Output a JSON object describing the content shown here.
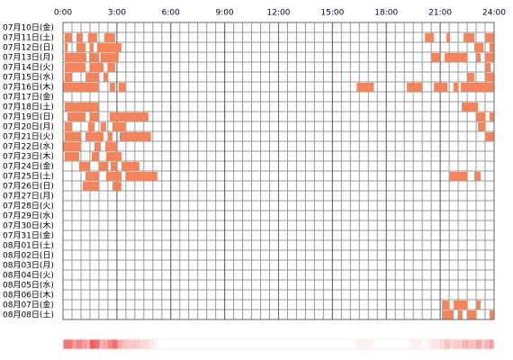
{
  "chart_data": {
    "type": "timeline",
    "color": "#f4845c",
    "grid": true,
    "xlim": [
      0,
      24
    ],
    "xticks": [
      {
        "value": 0,
        "label": "0:00"
      },
      {
        "value": 3,
        "label": "3:00"
      },
      {
        "value": 6,
        "label": "6:00"
      },
      {
        "value": 9,
        "label": "9:00"
      },
      {
        "value": 12,
        "label": "12:00"
      },
      {
        "value": 15,
        "label": "15:00"
      },
      {
        "value": 18,
        "label": "18:00"
      },
      {
        "value": 21,
        "label": "21:00"
      },
      {
        "value": 24,
        "label": "24:00"
      }
    ],
    "categories": [
      "07月10日(金)",
      "07月11日(土)",
      "07月12日(日)",
      "07月13日(月)",
      "07月14日(火)",
      "07月15日(水)",
      "07月16日(木)",
      "07月17日(金)",
      "07月18日(土)",
      "07月19日(日)",
      "07月20日(月)",
      "07月21日(火)",
      "07月22日(水)",
      "07月23日(木)",
      "07月24日(金)",
      "07月25日(土)",
      "07月26日(日)",
      "07月27日(月)",
      "07月28日(火)",
      "07月29日(水)",
      "07月30日(木)",
      "07月31日(金)",
      "08月01日(土)",
      "08月02日(日)",
      "08月03日(月)",
      "08月04日(火)",
      "08月05日(水)",
      "08月06日(木)",
      "08月07日(金)",
      "08月08日(土)"
    ],
    "values": [
      [],
      [
        [
          0.1,
          0.5
        ],
        [
          0.75,
          1.1
        ],
        [
          1.4,
          1.9
        ],
        [
          2.3,
          2.9
        ],
        [
          20.15,
          20.65
        ],
        [
          21.35,
          21.55
        ],
        [
          22.3,
          22.9
        ],
        [
          23.5,
          24
        ]
      ],
      [
        [
          0.1,
          0.25
        ],
        [
          0.75,
          1.25
        ],
        [
          1.5,
          1.7
        ],
        [
          1.9,
          3.25
        ],
        [
          22.9,
          23.4
        ],
        [
          23.75,
          24
        ]
      ],
      [
        [
          0.1,
          1.3
        ],
        [
          1.45,
          2
        ],
        [
          2.1,
          3.1
        ],
        [
          20.5,
          21
        ],
        [
          21.25,
          22.5
        ],
        [
          23,
          23.25
        ],
        [
          23.5,
          24
        ]
      ],
      [
        [
          0.1,
          1.25
        ],
        [
          1.5,
          2.25
        ],
        [
          2.5,
          2.9
        ],
        [
          23.5,
          23.8
        ]
      ],
      [
        [
          0.1,
          0.5
        ],
        [
          1.25,
          2
        ],
        [
          2.25,
          2.5
        ],
        [
          22.5,
          22.9
        ],
        [
          23.5,
          24
        ]
      ],
      [
        [
          0,
          2
        ],
        [
          2.6,
          2.9
        ],
        [
          3.1,
          3.5
        ],
        [
          16.35,
          17.3
        ],
        [
          19.15,
          20
        ],
        [
          20.65,
          21.4
        ],
        [
          21.75,
          22
        ],
        [
          22.15,
          24
        ]
      ],
      [],
      [
        [
          0.1,
          2
        ],
        [
          22.2,
          23.1
        ]
      ],
      [
        [
          0.25,
          1.25
        ],
        [
          1.5,
          2
        ],
        [
          2.6,
          4.75
        ],
        [
          23,
          23.5
        ],
        [
          23.75,
          24
        ]
      ],
      [
        [
          0.1,
          0.5
        ],
        [
          1.4,
          1.75
        ],
        [
          2.1,
          2.4
        ],
        [
          2.75,
          3.5
        ],
        [
          23.1,
          23.5
        ]
      ],
      [
        [
          0.1,
          1
        ],
        [
          1.25,
          2.25
        ],
        [
          2.5,
          2.75
        ],
        [
          3.15,
          4.9
        ],
        [
          23.5,
          24
        ]
      ],
      [
        [
          0,
          1
        ],
        [
          1.75,
          2.1
        ],
        [
          2.35,
          3
        ]
      ],
      [
        [
          0.1,
          0.9
        ],
        [
          1.6,
          2
        ],
        [
          2.4,
          3.25
        ]
      ],
      [
        [
          0.9,
          1.5
        ],
        [
          2,
          2.5
        ],
        [
          2.65,
          3
        ],
        [
          3.25,
          4.25
        ]
      ],
      [
        [
          1.25,
          2
        ],
        [
          2.4,
          3.25
        ],
        [
          3.5,
          5.25
        ],
        [
          21.5,
          22.5
        ],
        [
          22.9,
          23.25
        ]
      ],
      [
        [
          1.1,
          2
        ],
        [
          2.75,
          3.25
        ]
      ],
      [],
      [],
      [],
      [],
      [],
      [],
      [],
      [],
      [],
      [],
      [],
      [
        [
          21.1,
          21.5
        ],
        [
          21.75,
          22.5
        ],
        [
          23,
          23.25
        ]
      ],
      [
        [
          21.1,
          21.75
        ],
        [
          22,
          22.25
        ],
        [
          22.5,
          23
        ],
        [
          23.75,
          24
        ]
      ]
    ]
  }
}
